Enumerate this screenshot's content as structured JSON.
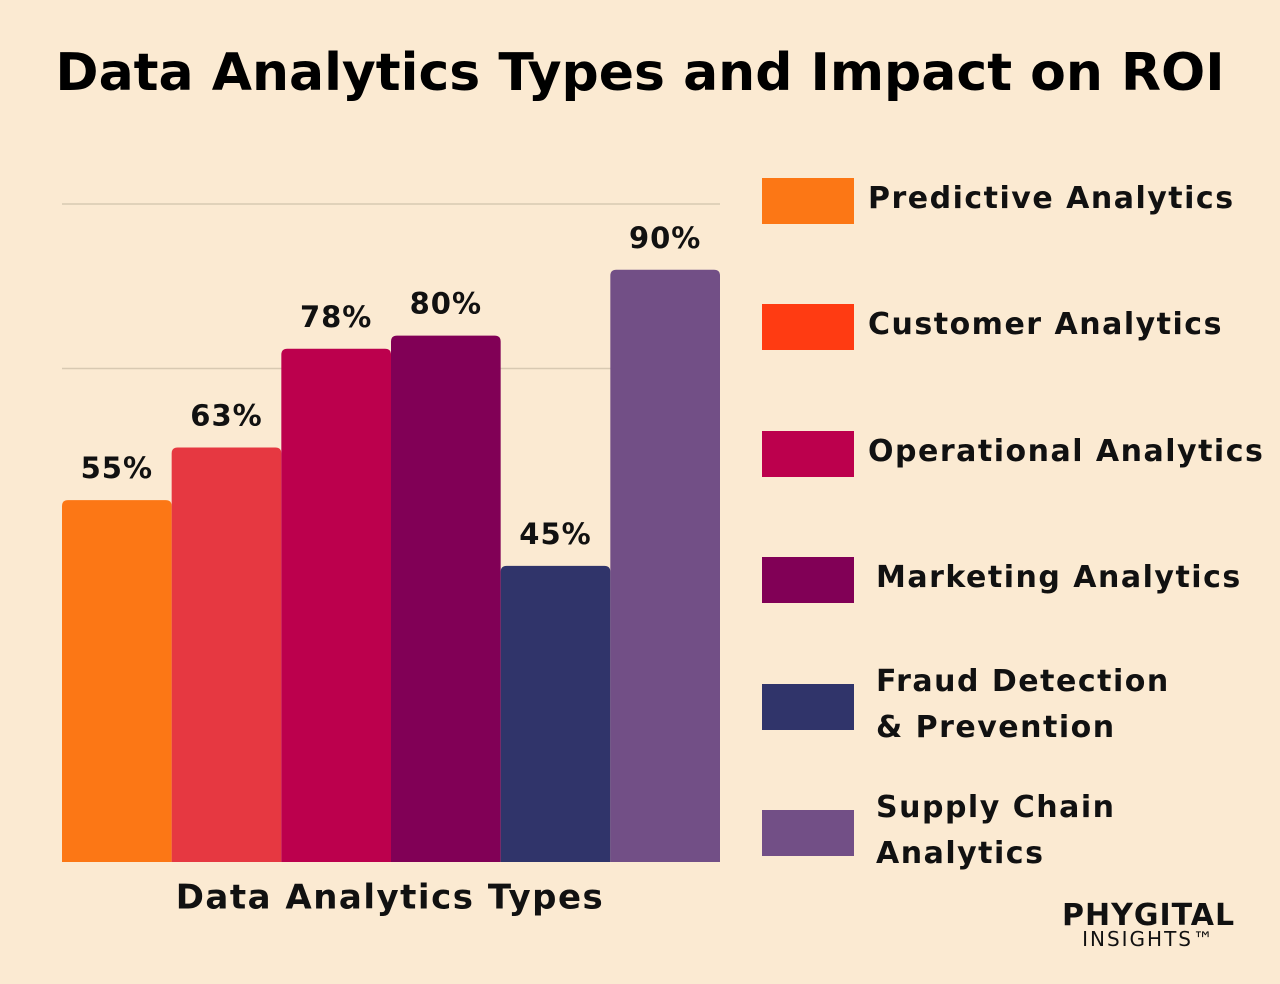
{
  "chart_data": {
    "type": "bar",
    "title": "Data Analytics Types and Impact on ROI",
    "x_label": "Data Analytics Types",
    "categories": [
      "Predictive Analytics",
      "Customer Analytics",
      "Operational Analytics",
      "Marketing Analytics",
      "Fraud Detection\n& Prevention",
      "Supply Chain\nAnalytics"
    ],
    "values": [
      55,
      63,
      78,
      80,
      45,
      90
    ],
    "value_labels": [
      "55%",
      "63%",
      "78%",
      "80%",
      "45%",
      "90%"
    ],
    "colors": [
      "#fc7715",
      "#e63841",
      "#bc004d",
      "#810056",
      "#30346a",
      "#724f86"
    ],
    "legend_colors": [
      "#fc7715",
      "#ff3b12",
      "#bc004d",
      "#810056",
      "#30346a",
      "#724f86"
    ],
    "ylim": [
      0,
      100
    ],
    "grid_values": [
      75,
      100
    ],
    "grid": true,
    "legend": "right"
  },
  "logo": {
    "name": "PHYGITAL",
    "tagline": "INSIGHTS™"
  }
}
